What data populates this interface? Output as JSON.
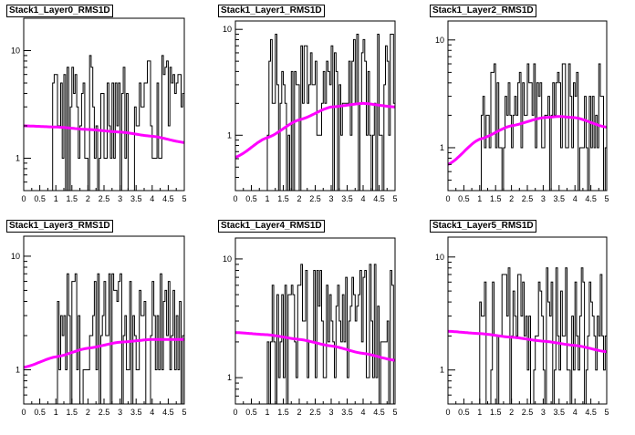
{
  "canvas": {
    "background": "#ffffff"
  },
  "colors": {
    "histogram": "#000000",
    "fit_curve": "#ff00ff",
    "frame": "#000000"
  },
  "chart_data": [
    {
      "type": "line",
      "title": "Stack1_Layer0_RMS1D",
      "xlim": [
        0,
        5
      ],
      "ylim": [
        0.5,
        20
      ],
      "yscale": "log",
      "x_ticks": [
        "0",
        "0.5",
        "1",
        "1.5",
        "2",
        "2.5",
        "3",
        "3.5",
        "4",
        "4.5",
        "5"
      ],
      "y_ticks": [
        {
          "value": 1,
          "label": "1"
        },
        {
          "value": 10,
          "label": "10"
        }
      ],
      "hist_range": [
        0.9,
        5.0
      ],
      "hist_min": 1,
      "hist_max": 9,
      "fit": {
        "x": [
          0,
          1,
          2,
          3,
          4,
          5
        ],
        "y": [
          2.0,
          1.95,
          1.85,
          1.75,
          1.6,
          1.4
        ]
      }
    },
    {
      "type": "line",
      "title": "Stack1_Layer1_RMS1D",
      "xlim": [
        0,
        5
      ],
      "ylim": [
        0.3,
        12
      ],
      "yscale": "log",
      "x_ticks": [
        "0",
        "0.5",
        "1",
        "1.5",
        "2",
        "2.5",
        "3",
        "3.5",
        "4",
        "4.5",
        "5"
      ],
      "y_ticks": [
        {
          "value": 1,
          "label": "1"
        },
        {
          "value": 10,
          "label": "10"
        }
      ],
      "hist_range": [
        1.0,
        5.0
      ],
      "hist_min": 1,
      "hist_max": 9,
      "fit": {
        "x": [
          0,
          1,
          2,
          3,
          4,
          5
        ],
        "y": [
          0.62,
          0.95,
          1.4,
          1.85,
          2.0,
          1.85
        ]
      }
    },
    {
      "type": "line",
      "title": "Stack1_Layer2_RMS1D",
      "xlim": [
        0,
        5
      ],
      "ylim": [
        0.4,
        15
      ],
      "yscale": "log",
      "x_ticks": [
        "0",
        "0.5",
        "1",
        "1.5",
        "2",
        "2.5",
        "3",
        "3.5",
        "4",
        "4.5",
        "5"
      ],
      "y_ticks": [
        {
          "value": 1,
          "label": "1"
        },
        {
          "value": 10,
          "label": "10"
        }
      ],
      "hist_range": [
        1.05,
        5.0
      ],
      "hist_min": 1,
      "hist_max": 6,
      "fit": {
        "x": [
          0,
          1,
          2,
          3,
          3.5,
          4,
          5
        ],
        "y": [
          0.7,
          1.2,
          1.6,
          1.9,
          1.95,
          1.9,
          1.55
        ]
      }
    },
    {
      "type": "line",
      "title": "Stack1_Layer3_RMS1D",
      "xlim": [
        0,
        5
      ],
      "ylim": [
        0.5,
        15
      ],
      "yscale": "log",
      "x_ticks": [
        "0",
        "0.5",
        "1",
        "1.5",
        "2",
        "2.5",
        "3",
        "3.5",
        "4",
        "4.5",
        "5"
      ],
      "y_ticks": [
        {
          "value": 1,
          "label": "1"
        },
        {
          "value": 10,
          "label": "10"
        }
      ],
      "hist_range": [
        1.0,
        5.0
      ],
      "hist_min": 1,
      "hist_max": 7,
      "fit": {
        "x": [
          0,
          1,
          2,
          3,
          4,
          5
        ],
        "y": [
          1.05,
          1.3,
          1.55,
          1.75,
          1.85,
          1.85
        ]
      }
    },
    {
      "type": "line",
      "title": "Stack1_Layer4_RMS1D",
      "xlim": [
        0,
        5
      ],
      "ylim": [
        0.6,
        15
      ],
      "yscale": "log",
      "x_ticks": [
        "0",
        "0.5",
        "1",
        "1.5",
        "2",
        "2.5",
        "3",
        "3.5",
        "4",
        "4.5",
        "5"
      ],
      "y_ticks": [
        {
          "value": 1,
          "label": "1"
        },
        {
          "value": 10,
          "label": "10"
        }
      ],
      "hist_range": [
        1.0,
        5.0
      ],
      "hist_min": 1,
      "hist_max": 9,
      "fit": {
        "x": [
          0,
          1,
          2,
          3,
          4,
          5
        ],
        "y": [
          2.4,
          2.3,
          2.1,
          1.85,
          1.6,
          1.4
        ]
      }
    },
    {
      "type": "line",
      "title": "Stack1_Layer5_RMS1D",
      "xlim": [
        0,
        5
      ],
      "ylim": [
        0.5,
        15
      ],
      "yscale": "log",
      "x_ticks": [
        "0",
        "0.5",
        "1",
        "1.5",
        "2",
        "2.5",
        "3",
        "3.5",
        "4",
        "4.5",
        "5"
      ],
      "y_ticks": [
        {
          "value": 1,
          "label": "1"
        },
        {
          "value": 10,
          "label": "10"
        }
      ],
      "hist_range": [
        1.0,
        5.0
      ],
      "hist_min": 1,
      "hist_max": 8,
      "fit": {
        "x": [
          0,
          1,
          2,
          3,
          4,
          5
        ],
        "y": [
          2.2,
          2.1,
          1.95,
          1.8,
          1.65,
          1.45
        ]
      }
    }
  ]
}
